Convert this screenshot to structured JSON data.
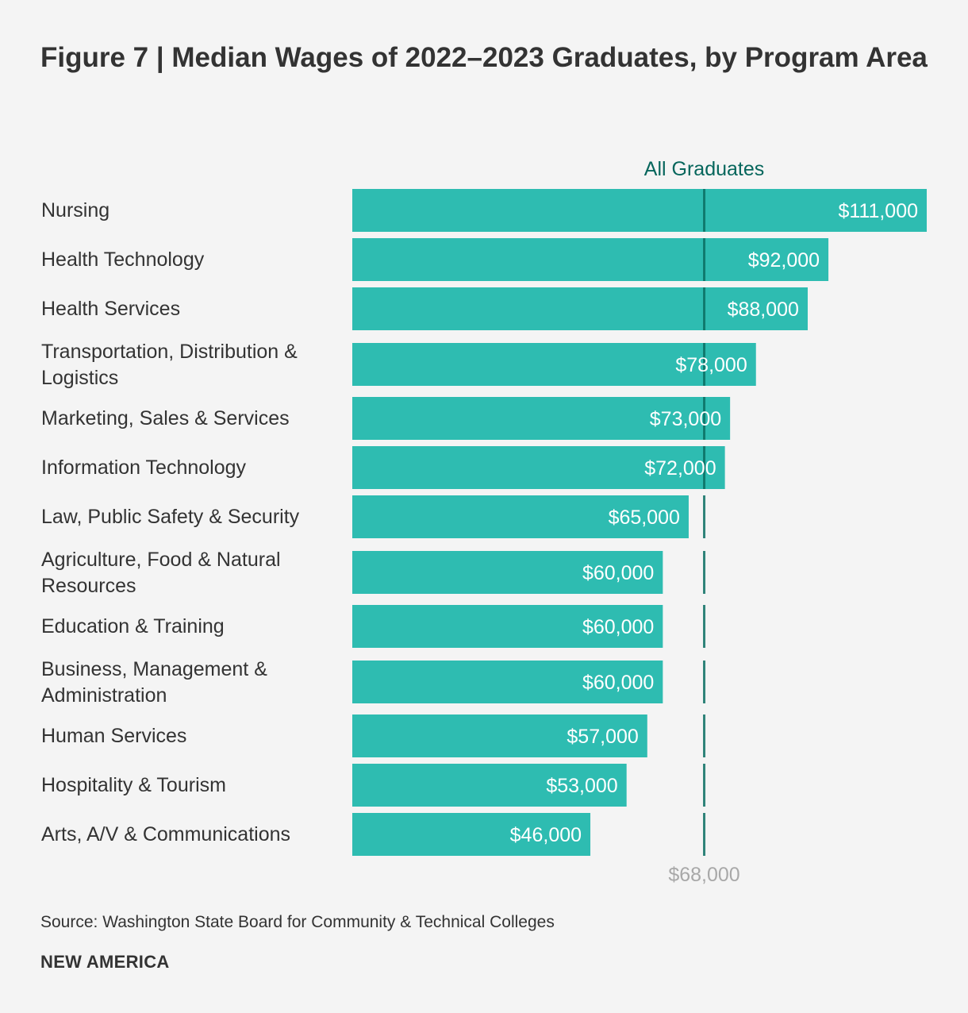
{
  "chart_data": {
    "type": "bar",
    "orientation": "horizontal",
    "title": "Figure 7 | Median Wages of 2022–2023 Graduates, by Program Area",
    "categories": [
      "Nursing",
      "Health Technology",
      "Health Services",
      "Transportation, Distribution & Logistics",
      "Marketing, Sales & Services",
      "Information Technology",
      "Law, Public Safety & Security",
      "Agriculture, Food & Natural Resources",
      "Education & Training",
      "Business, Management & Administration",
      "Human Services",
      "Hospitality & Tourism",
      "Arts, A/V & Communications"
    ],
    "label_lines": [
      [
        "Nursing"
      ],
      [
        "Health Technology"
      ],
      [
        "Health Services"
      ],
      [
        "Transportation, Distribution &",
        "Logistics"
      ],
      [
        "Marketing, Sales & Services"
      ],
      [
        "Information Technology"
      ],
      [
        "Law, Public Safety & Security"
      ],
      [
        "Agriculture, Food & Natural",
        "Resources"
      ],
      [
        "Education & Training"
      ],
      [
        "Business, Management &",
        "Administration"
      ],
      [
        "Human Services"
      ],
      [
        "Hospitality & Tourism"
      ],
      [
        "Arts, A/V & Communications"
      ]
    ],
    "values": [
      111000,
      92000,
      88000,
      78000,
      73000,
      72000,
      65000,
      60000,
      60000,
      60000,
      57000,
      53000,
      46000
    ],
    "value_labels": [
      "$111,000",
      "$92,000",
      "$88,000",
      "$78,000",
      "$73,000",
      "$72,000",
      "$65,000",
      "$60,000",
      "$60,000",
      "$60,000",
      "$57,000",
      "$53,000",
      "$46,000"
    ],
    "reference_line": {
      "label": "All Graduates",
      "value": 68000,
      "value_label": "$68,000"
    },
    "xlim": [
      0,
      111000
    ],
    "bar_color": "#2ebcb1",
    "reference_color": "#0a6e63"
  },
  "source": "Source: Washington State Board for Community & Technical Colleges",
  "brand": "NEW AMERICA"
}
